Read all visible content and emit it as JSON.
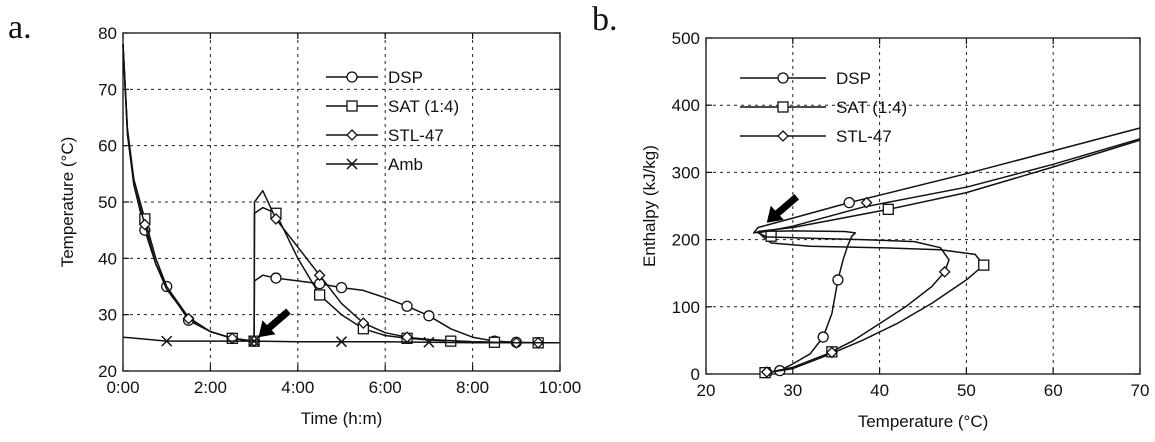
{
  "chart_data": [
    {
      "panel_label": "a.",
      "type": "line",
      "xlabel": "Time (h:m)",
      "ylabel": "Temperature (°C)",
      "xlim": [
        0,
        10
      ],
      "ylim": [
        20,
        80
      ],
      "xtick_values": [
        0,
        2,
        4,
        6,
        8,
        10
      ],
      "xticks": [
        "0:00",
        "2:00",
        "4:00",
        "6:00",
        "8:00",
        "10:00"
      ],
      "ytick_values": [
        20,
        30,
        40,
        50,
        60,
        70,
        80
      ],
      "yticks": [
        "20",
        "30",
        "40",
        "50",
        "60",
        "70",
        "80"
      ],
      "grid": true,
      "legend_position": "top-right",
      "arrow_annotation": {
        "x": 3.1,
        "y": 26
      },
      "series": [
        {
          "name": "DSP",
          "marker": "circle",
          "x": [
            0,
            0.1,
            0.25,
            0.5,
            0.75,
            1.0,
            1.5,
            2.0,
            2.5,
            2.9,
            3.0,
            3.01,
            3.2,
            3.5,
            4.0,
            4.5,
            5.0,
            5.5,
            6.0,
            6.5,
            7.0,
            7.5,
            8.0,
            8.5,
            9.0,
            9.5,
            10.0
          ],
          "y": [
            78,
            63,
            53,
            45,
            39,
            35,
            29,
            27,
            25.8,
            25.4,
            25.3,
            36,
            37,
            36.5,
            36,
            35.5,
            34.8,
            34.3,
            33,
            31.5,
            29.8,
            27.5,
            26,
            25.3,
            25.1,
            25.0,
            25.0
          ],
          "marker_x": [
            0.5,
            1.0,
            1.5,
            2.5,
            3.0,
            3.5,
            4.5,
            5.0,
            6.5,
            7.0,
            8.5,
            9.0,
            9.5
          ]
        },
        {
          "name": "SAT (1:4)",
          "marker": "square",
          "x": [
            0,
            0.1,
            0.25,
            0.5,
            0.75,
            1.0,
            1.5,
            2.0,
            2.5,
            2.9,
            3.0,
            3.01,
            3.2,
            3.5,
            4.0,
            4.5,
            5.0,
            5.5,
            6.0,
            6.5,
            7.0,
            7.5,
            8.0,
            8.5,
            9.0,
            9.5,
            10.0
          ],
          "y": [
            78,
            63,
            54,
            47,
            40,
            35,
            29.5,
            27,
            25.8,
            25.4,
            25.3,
            48,
            49,
            48,
            40,
            33.5,
            30,
            27.5,
            26.3,
            25.8,
            25.5,
            25.3,
            25.2,
            25.1,
            25.0,
            25.0,
            25.0
          ],
          "marker_x": [
            0.5,
            2.5,
            3.0,
            3.5,
            4.5,
            5.5,
            6.5,
            7.5,
            8.5,
            9.5
          ]
        },
        {
          "name": "STL-47",
          "marker": "diamond",
          "x": [
            0,
            0.1,
            0.25,
            0.5,
            0.75,
            1.0,
            1.5,
            2.0,
            2.5,
            2.9,
            3.0,
            3.01,
            3.2,
            3.5,
            4.0,
            4.5,
            5.0,
            5.5,
            6.0,
            6.5,
            7.0,
            7.5,
            8.0,
            8.5,
            9.0,
            9.5,
            10.0
          ],
          "y": [
            78,
            62,
            53,
            46,
            39,
            34.5,
            29.3,
            27,
            25.8,
            25.4,
            25.3,
            50,
            52,
            47,
            42,
            37,
            32,
            28.5,
            26.8,
            26,
            25.6,
            25.4,
            25.2,
            25.1,
            25.0,
            25.0,
            25.0
          ],
          "marker_x": [
            0.5,
            1.5,
            2.5,
            3.0,
            3.5,
            4.5,
            5.5,
            6.5,
            9.0,
            9.5
          ]
        },
        {
          "name": "Amb",
          "marker": "x",
          "x": [
            0,
            1,
            2,
            3,
            4,
            5,
            6,
            7,
            8,
            9,
            10
          ],
          "y": [
            26,
            25.3,
            25.3,
            25.3,
            25.2,
            25.2,
            25.2,
            25.1,
            25.0,
            25.0,
            25.0
          ],
          "marker_x": [
            1,
            3,
            5,
            7
          ]
        }
      ]
    },
    {
      "panel_label": "b.",
      "type": "line",
      "xlabel": "Temperature (°C)",
      "ylabel": "Enthalpy (kJ/kg)",
      "xlim": [
        20,
        70
      ],
      "ylim": [
        0,
        500
      ],
      "xtick_values": [
        20,
        30,
        40,
        50,
        60,
        70
      ],
      "xticks": [
        "20",
        "30",
        "40",
        "50",
        "60",
        "70"
      ],
      "ytick_values": [
        0,
        100,
        200,
        300,
        400,
        500
      ],
      "yticks": [
        "0",
        "100",
        "200",
        "300",
        "400",
        "500"
      ],
      "grid": true,
      "legend_position": "top-left",
      "arrow_annotation": {
        "x": 27,
        "y": 225
      },
      "series": [
        {
          "name": "DSP",
          "marker": "circle",
          "x": [
            27,
            28.5,
            30,
            32,
            33.5,
            34.5,
            35.2,
            35.8,
            36.3,
            36.8,
            37.2,
            36,
            30,
            26.5,
            25.5,
            26,
            30,
            36.5,
            40,
            50,
            60,
            70
          ],
          "y": [
            2,
            5,
            15,
            30,
            55,
            90,
            140,
            170,
            190,
            205,
            210,
            212,
            213,
            212,
            210,
            218,
            232,
            255,
            266,
            298,
            332,
            366
          ],
          "marker_points": [
            [
              27,
              2
            ],
            [
              28.5,
              5
            ],
            [
              33.5,
              55
            ],
            [
              35.2,
              140
            ],
            [
              36.5,
              255
            ]
          ]
        },
        {
          "name": "SAT (1:4)",
          "marker": "square",
          "x": [
            27,
            30,
            34,
            38,
            42,
            46,
            50,
            52,
            51,
            47,
            40,
            32,
            27.5,
            26.5,
            26,
            30,
            41,
            50,
            60,
            70
          ],
          "y": [
            2,
            8,
            28,
            50,
            75,
            105,
            140,
            162,
            178,
            185,
            188,
            190,
            195,
            205,
            212,
            218,
            245,
            270,
            308,
            348
          ],
          "marker_points": [
            [
              26.8,
              2
            ],
            [
              34.5,
              33
            ],
            [
              52,
              162
            ],
            [
              27.5,
              205
            ],
            [
              41,
              245
            ]
          ]
        },
        {
          "name": "STL-47",
          "marker": "diamond",
          "x": [
            27,
            30,
            34,
            37,
            40,
            43,
            46,
            47.5,
            48,
            47,
            44,
            38,
            32,
            27,
            26,
            30,
            38,
            50,
            60,
            70
          ],
          "y": [
            2,
            10,
            30,
            50,
            75,
            100,
            130,
            152,
            170,
            188,
            197,
            200,
            202,
            204,
            210,
            220,
            248,
            278,
            312,
            350
          ],
          "marker_points": [
            [
              27,
              3
            ],
            [
              34.5,
              32
            ],
            [
              47.5,
              152
            ],
            [
              38.5,
              255
            ]
          ]
        }
      ]
    }
  ]
}
